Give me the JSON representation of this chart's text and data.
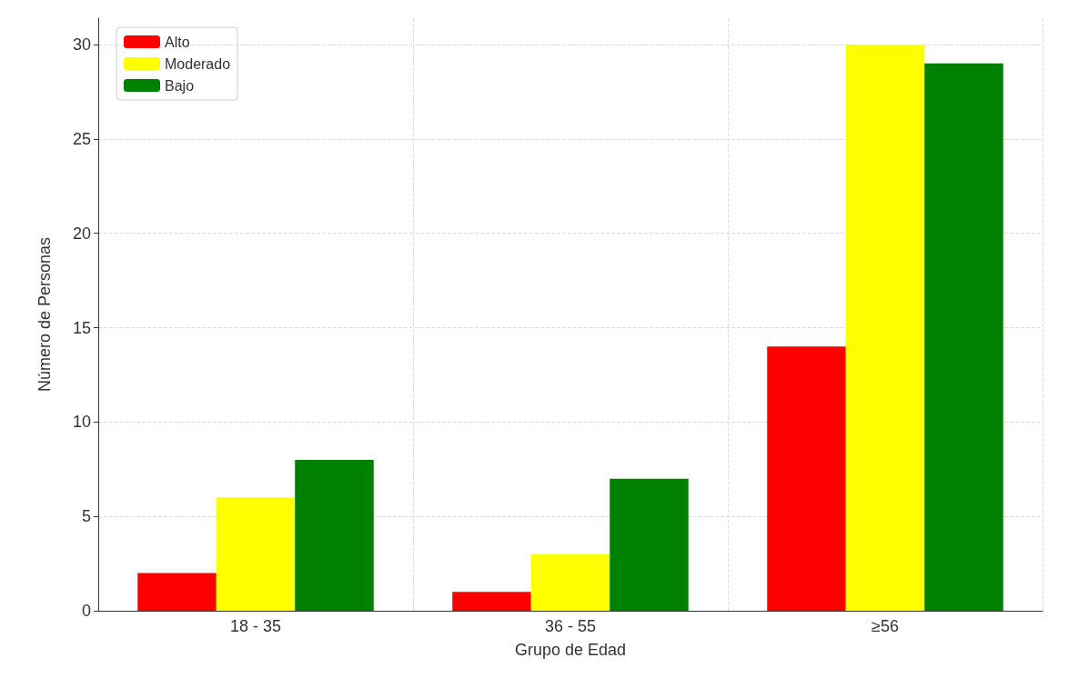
{
  "chart_data": {
    "type": "bar",
    "xlabel": "Grupo de Edad",
    "ylabel": "Número de Personas",
    "categories": [
      "18 - 35",
      "36 - 55",
      "≥56"
    ],
    "series": [
      {
        "name": "Alto",
        "color": "#ff0000",
        "values": [
          2,
          1,
          14
        ]
      },
      {
        "name": "Moderado",
        "color": "#ffff00",
        "values": [
          6,
          3,
          30
        ]
      },
      {
        "name": "Bajo",
        "color": "#008000",
        "values": [
          8,
          7,
          29
        ]
      }
    ],
    "ylim": [
      0,
      31.4
    ],
    "yticks": [
      0,
      5,
      10,
      15,
      20,
      25,
      30
    ],
    "grid": true,
    "legend": "top left"
  }
}
